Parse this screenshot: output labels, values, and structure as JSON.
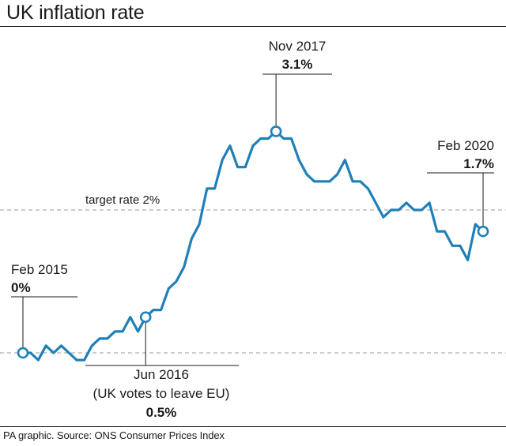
{
  "chart_data": {
    "type": "line",
    "title": "UK inflation rate",
    "x_range": [
      "Feb 2015",
      "Feb 2020"
    ],
    "y_unit": "%",
    "ylim": [
      0,
      3.1
    ],
    "grid": false,
    "reference_lines": [
      {
        "label": "target rate 2%",
        "value": 2.0
      },
      {
        "label": "",
        "value": 0
      }
    ],
    "series": [
      {
        "color": "#1f80b8",
        "values": [
          0.0,
          0.0,
          -0.1,
          0.1,
          0.0,
          0.1,
          0.0,
          -0.1,
          -0.1,
          0.1,
          0.2,
          0.2,
          0.3,
          0.3,
          0.5,
          0.3,
          0.5,
          0.6,
          0.6,
          0.9,
          1.0,
          1.2,
          1.6,
          1.8,
          2.3,
          2.3,
          2.7,
          2.9,
          2.6,
          2.6,
          2.9,
          3.0,
          3.0,
          3.1,
          3.0,
          3.0,
          2.7,
          2.5,
          2.4,
          2.4,
          2.4,
          2.5,
          2.7,
          2.4,
          2.4,
          2.3,
          2.1,
          1.9,
          2.0,
          2.0,
          2.1,
          2.0,
          2.0,
          2.1,
          1.7,
          1.7,
          1.5,
          1.5,
          1.3,
          1.8,
          1.7
        ]
      }
    ],
    "annotations": [
      {
        "id": "feb2015",
        "label": "Feb 2015",
        "value_text": "0%",
        "index": 0
      },
      {
        "id": "jun2016",
        "label_lines": [
          "Jun 2016",
          "(UK votes to leave EU)"
        ],
        "value_text": "0.5%",
        "index": 16
      },
      {
        "id": "nov2017",
        "label": "Nov 2017",
        "value_text": "3.1%",
        "index": 33
      },
      {
        "id": "feb2020",
        "label": "Feb 2020",
        "value_text": "1.7%",
        "index": 60
      }
    ],
    "target_label": "target rate 2%"
  },
  "footer": "PA graphic. Source: ONS Consumer Prices Index"
}
